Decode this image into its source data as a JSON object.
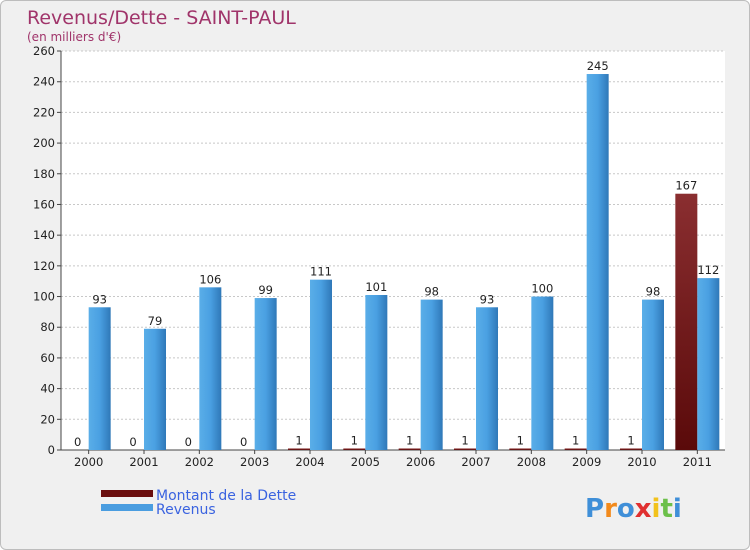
{
  "chart_data": {
    "type": "bar",
    "title": "Revenus/Dette - SAINT-PAUL",
    "subtitle": "(en milliers d'€)",
    "xlabel": "",
    "ylabel": "",
    "ylim": [
      0,
      260
    ],
    "yticks": [
      "0",
      "20",
      "40",
      "60",
      "80",
      "100",
      "120",
      "140",
      "160",
      "180",
      "200",
      "220",
      "240",
      "260"
    ],
    "categories": [
      "2000",
      "2001",
      "2002",
      "2003",
      "2004",
      "2005",
      "2006",
      "2007",
      "2008",
      "2009",
      "2010",
      "2011"
    ],
    "series": [
      {
        "name": "Montant de la Dette",
        "color": "#7a1a1a",
        "values": [
          0,
          0,
          0,
          0,
          1,
          1,
          1,
          1,
          1,
          1,
          1,
          167
        ],
        "labels": [
          "0",
          "0",
          "0",
          "0",
          "1",
          "1",
          "1",
          "1",
          "1",
          "1",
          "1",
          "167"
        ]
      },
      {
        "name": "Revenus",
        "color": "#4a9de0",
        "values": [
          93,
          79,
          106,
          99,
          111,
          101,
          98,
          93,
          100,
          245,
          98,
          112
        ],
        "labels": [
          "93",
          "79",
          "106",
          "99",
          "111",
          "101",
          "98",
          "93",
          "100",
          "245",
          "98",
          "112"
        ]
      }
    ],
    "grid": true,
    "legend_position": "bottom-left"
  },
  "watermark": {
    "text": "Proxiti"
  }
}
